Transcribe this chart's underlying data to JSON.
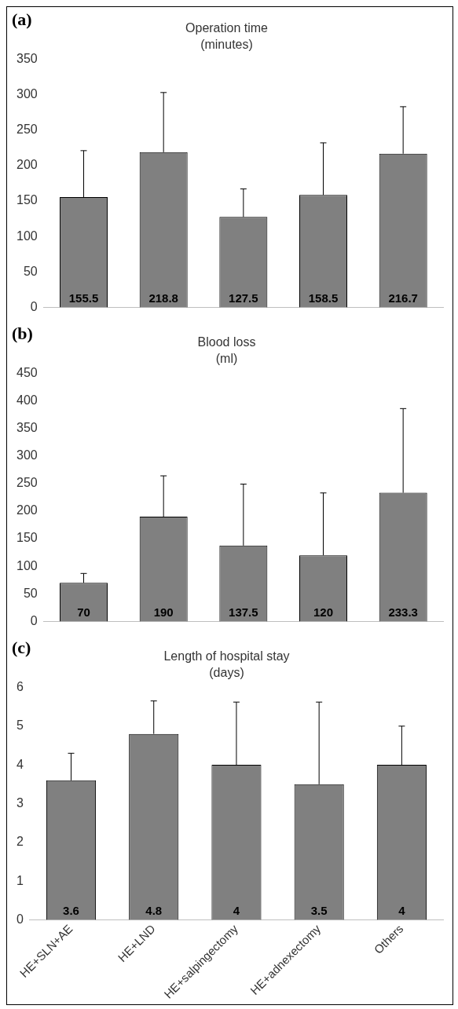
{
  "chart_data": [
    {
      "type": "bar",
      "annotations": [
        "(a)"
      ],
      "title": "Operation time",
      "subtitle": "(minutes)",
      "categories": [
        null,
        null,
        null,
        null,
        null
      ],
      "values": [
        155.5,
        218.8,
        127.5,
        158.5,
        216.7
      ],
      "color": "#808080",
      "errors": [
        [
          155.5,
          221
        ],
        [
          218.8,
          303
        ],
        [
          127.5,
          167
        ],
        [
          158.5,
          232
        ],
        [
          216.7,
          283
        ]
      ],
      "data_labels": true,
      "ylim": [
        0,
        350
      ],
      "yticks": [
        0,
        50,
        100,
        150,
        200,
        250,
        300,
        350
      ],
      "tick_labels": "y",
      "grid": false,
      "legend": false
    },
    {
      "type": "bar",
      "annotations": [
        "(b)"
      ],
      "title": "Blood loss",
      "subtitle": "(ml)",
      "categories": [
        null,
        null,
        null,
        null,
        null
      ],
      "values": [
        70,
        190,
        137.5,
        120,
        233.3
      ],
      "color": "#808080",
      "errors": [
        [
          70,
          87
        ],
        [
          190,
          264
        ],
        [
          137.5,
          249
        ],
        [
          120,
          233
        ],
        [
          233.3,
          386
        ]
      ],
      "data_labels": true,
      "ylim": [
        0,
        450
      ],
      "yticks": [
        0,
        50,
        100,
        150,
        200,
        250,
        300,
        350,
        400,
        450
      ],
      "tick_labels": "y",
      "grid": false,
      "legend": false
    },
    {
      "type": "bar",
      "annotations": [
        "(c)"
      ],
      "title": "Length of hospital stay",
      "subtitle": "(days)",
      "categories": [
        "HE+SLN+AE",
        "HE+LND",
        "HE+salpingectomy",
        "HE+adnexectomy",
        "Others"
      ],
      "values": [
        3.6,
        4.8,
        4,
        3.5,
        4
      ],
      "color": "#808080",
      "errors": [
        [
          3.6,
          4.3
        ],
        [
          4.8,
          5.65
        ],
        [
          4,
          5.62
        ],
        [
          3.5,
          5.62
        ],
        [
          4,
          5.0
        ]
      ],
      "data_labels": true,
      "ylim": [
        0,
        6
      ],
      "yticks": [
        0,
        1,
        2,
        3,
        4,
        5,
        6
      ],
      "grid": false,
      "legend": false
    }
  ]
}
